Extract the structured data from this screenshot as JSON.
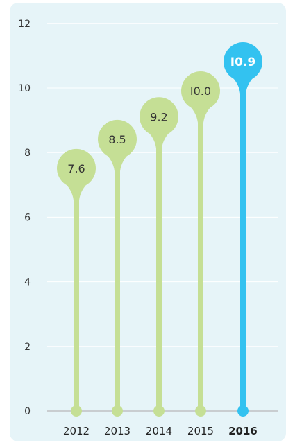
{
  "chart_data": {
    "type": "bar",
    "categories": [
      "2012",
      "2013",
      "2014",
      "2015",
      "2016"
    ],
    "values": [
      7.6,
      8.5,
      9.2,
      10.0,
      10.9
    ],
    "value_labels": [
      "7.6",
      "8.5",
      "9.2",
      "I0.0",
      "I0.9"
    ],
    "ylim": [
      0,
      12
    ],
    "yticks": [
      0,
      2,
      4,
      6,
      8,
      10,
      12
    ],
    "highlight_category": "2016",
    "grid": true,
    "legend": "none",
    "colors": {
      "normal": "#c5df95",
      "highlight": "#33c2f0",
      "panel": "#e6f4f8"
    }
  }
}
